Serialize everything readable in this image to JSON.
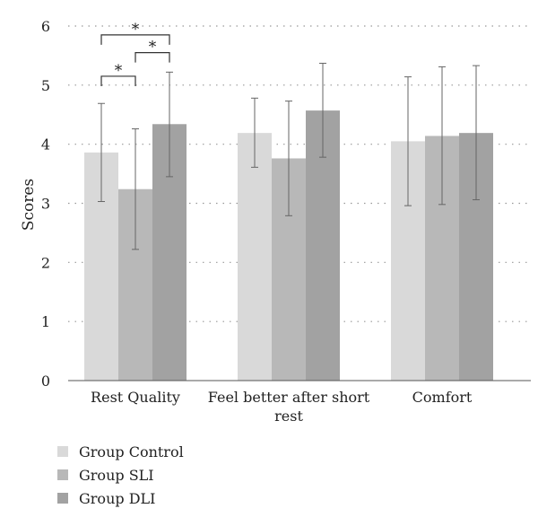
{
  "chart_data": {
    "type": "bar",
    "ylabel": "Scores",
    "ylim": [
      0,
      6
    ],
    "yticks": [
      0,
      1,
      2,
      3,
      4,
      5,
      6
    ],
    "grid": "horizontal-dotted",
    "categories": [
      {
        "lines": [
          "Rest Quality"
        ]
      },
      {
        "lines": [
          "Feel better after short",
          "rest"
        ]
      },
      {
        "lines": [
          "Comfort"
        ]
      }
    ],
    "series": [
      {
        "name": "Group Control",
        "color": "#d9d9d9",
        "values": [
          3.86,
          4.19,
          4.05
        ],
        "err_low": [
          3.03,
          3.61,
          2.96
        ],
        "err_high": [
          4.69,
          4.78,
          5.14
        ]
      },
      {
        "name": "Group SLI",
        "color": "#b8b8b8",
        "values": [
          3.24,
          3.76,
          4.14
        ],
        "err_low": [
          2.22,
          2.79,
          2.98
        ],
        "err_high": [
          4.26,
          4.73,
          5.31
        ]
      },
      {
        "name": "Group DLI",
        "color": "#a2a2a2",
        "values": [
          4.34,
          4.57,
          4.19
        ],
        "err_low": [
          3.45,
          3.78,
          3.06
        ],
        "err_high": [
          5.22,
          5.37,
          5.33
        ]
      }
    ],
    "significance": [
      {
        "category": 0,
        "from": 0,
        "to": 1,
        "y": 5.15,
        "label": "*"
      },
      {
        "category": 0,
        "from": 1,
        "to": 2,
        "y": 5.55,
        "label": "*"
      },
      {
        "category": 0,
        "from": 0,
        "to": 2,
        "y": 5.85,
        "label": "*"
      }
    ],
    "legend_position": "bottom-left"
  }
}
